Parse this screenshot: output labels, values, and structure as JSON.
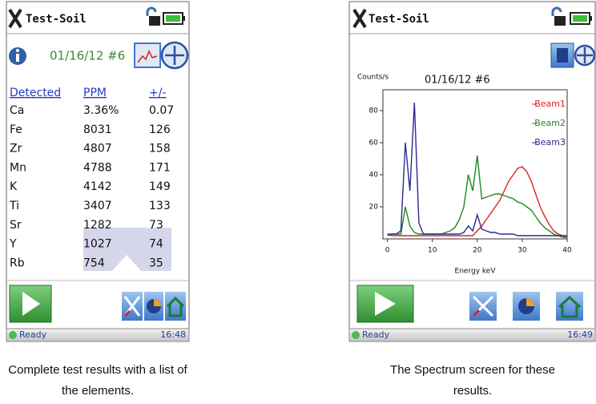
{
  "left_screen": {
    "app_title": "Test-Soil",
    "date": "01/16/12 #6",
    "table": {
      "headers": [
        "Detected",
        "PPM",
        "+/-"
      ],
      "rows": [
        [
          "Ca",
          "3.36%",
          "0.07"
        ],
        [
          "Fe",
          "8031",
          "126"
        ],
        [
          "Zr",
          "4807",
          "158"
        ],
        [
          "Mn",
          "4788",
          "171"
        ],
        [
          "K",
          "4142",
          "149"
        ],
        [
          "Ti",
          "3407",
          "133"
        ],
        [
          "Sr",
          "1282",
          "73"
        ],
        [
          "Y",
          "1027",
          "74"
        ],
        [
          "Rb",
          "754",
          "35"
        ]
      ]
    },
    "status": "Ready",
    "time": "16:48"
  },
  "right_screen": {
    "app_title": "Test-Soil",
    "date": "01/16/12 #6",
    "status": "Ready",
    "time": "16:49",
    "chart_data": {
      "type": "line",
      "ylabel": "Counts/s",
      "xlabel": "Energy keV",
      "x": [
        0,
        1,
        2,
        3,
        4,
        5,
        6,
        7,
        8,
        9,
        10,
        11,
        12,
        13,
        14,
        15,
        16,
        17,
        18,
        19,
        20,
        21,
        22,
        23,
        24,
        25,
        26,
        27,
        28,
        29,
        30,
        31,
        32,
        33,
        34,
        35,
        36,
        37,
        38,
        39,
        40
      ],
      "series": [
        {
          "name": "Beam1",
          "color": "#e02020",
          "values": [
            3,
            2,
            2,
            2,
            2,
            2,
            2,
            2,
            2,
            2,
            2,
            2,
            2,
            2,
            2,
            2,
            2,
            2,
            2,
            2,
            5,
            8,
            12,
            16,
            20,
            24,
            30,
            36,
            40,
            44,
            45,
            42,
            36,
            28,
            20,
            14,
            9,
            5,
            3,
            2,
            1
          ]
        },
        {
          "name": "Beam2",
          "color": "#1e8a1e",
          "values": [
            3,
            3,
            3,
            3,
            20,
            8,
            4,
            3,
            3,
            3,
            3,
            3,
            3,
            4,
            5,
            7,
            12,
            20,
            40,
            30,
            52,
            25,
            26,
            27,
            28,
            28,
            27,
            26,
            25,
            23,
            22,
            20,
            18,
            14,
            10,
            7,
            5,
            3,
            2,
            1,
            1
          ]
        },
        {
          "name": "Beam3",
          "color": "#2a2a90",
          "values": [
            2,
            3,
            3,
            5,
            60,
            30,
            85,
            10,
            3,
            3,
            3,
            3,
            3,
            3,
            3,
            3,
            3,
            4,
            8,
            5,
            15,
            6,
            5,
            4,
            4,
            3,
            3,
            3,
            3,
            2,
            2,
            2,
            2,
            2,
            2,
            2,
            2,
            2,
            2,
            2,
            2
          ]
        }
      ],
      "xlim": [
        -1,
        40
      ],
      "ylim": [
        0,
        90
      ],
      "xticks": [
        0,
        10,
        20,
        30,
        40
      ],
      "yticks": [
        20,
        40,
        60,
        80
      ],
      "legend": "upper right"
    }
  },
  "captions": [
    [
      "Complete test results with a list of",
      "the elements."
    ],
    [
      "The Spectrum screen for these",
      "results."
    ]
  ]
}
